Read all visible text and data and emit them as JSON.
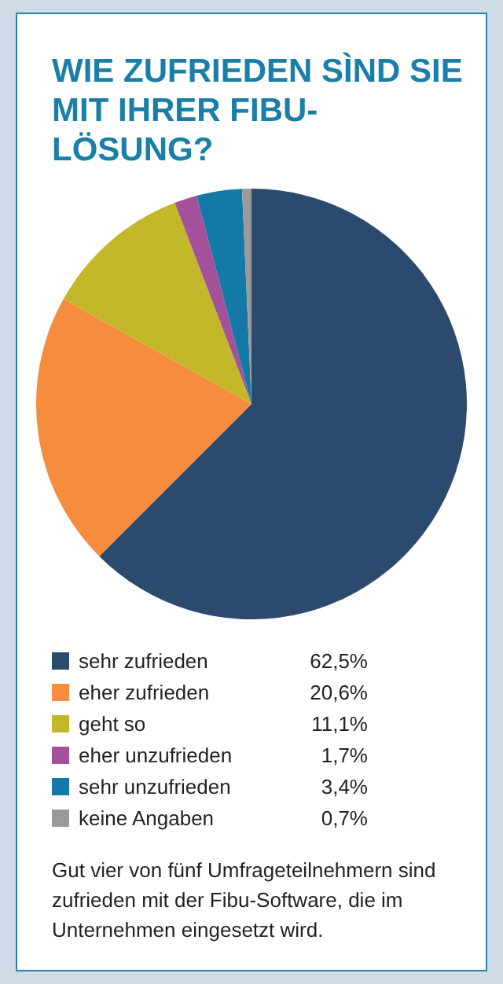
{
  "chart_data": {
    "type": "pie",
    "title": "WIE ZUFRIEDEN SÌND SIE MIT IHRER FIBU-LÖSUNG?",
    "categories": [
      "sehr zufrieden",
      "eher zufrieden",
      "geht so",
      "eher unzufrieden",
      "sehr unzufrieden",
      "keine Angaben"
    ],
    "values": [
      62.5,
      20.6,
      11.1,
      1.7,
      3.4,
      0.7
    ],
    "value_labels": [
      "62,5%",
      "20,6%",
      "11,1%",
      "1,7%",
      "3,4%",
      "0,7%"
    ],
    "colors": [
      "#2b4a6e",
      "#f68c3e",
      "#c3b82a",
      "#a5509a",
      "#1479a6",
      "#9a9a9a"
    ],
    "legend": "bottom",
    "annotations": [
      "Gut vier von fünf Umfrageteilnehmern sind zufrieden mit der Fibu-Software, die im Unternehmen eingesetzt wird."
    ]
  }
}
